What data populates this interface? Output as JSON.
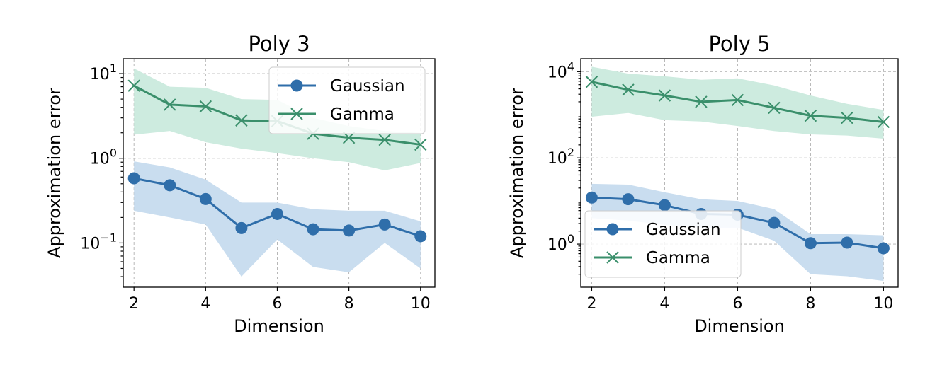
{
  "chart_data": [
    {
      "type": "line",
      "title": "Poly 3",
      "xlabel": "Dimension",
      "ylabel": "Approximation error",
      "yscale": "log",
      "xlim": [
        1.7,
        10.4
      ],
      "ylim": [
        0.03,
        15
      ],
      "xticks": [
        2,
        4,
        6,
        8,
        10
      ],
      "yticks": [
        {
          "value": 0.1,
          "base": "10",
          "exp": "−1"
        },
        {
          "value": 1,
          "base": "10",
          "exp": "0"
        },
        {
          "value": 10,
          "base": "10",
          "exp": "1"
        }
      ],
      "grid": true,
      "legend": "top-right",
      "x": [
        2,
        3,
        4,
        5,
        6,
        7,
        8,
        9,
        10
      ],
      "series": [
        {
          "name": "Gaussian",
          "color": "#2f6eaa",
          "band_color": "#c9ddef",
          "marker": "circle",
          "values": [
            0.58,
            0.48,
            0.33,
            0.15,
            0.22,
            0.145,
            0.14,
            0.165,
            0.12
          ],
          "lower": [
            0.24,
            0.2,
            0.165,
            0.04,
            0.11,
            0.052,
            0.045,
            0.1,
            0.05
          ],
          "upper": [
            0.92,
            0.78,
            0.56,
            0.3,
            0.3,
            0.25,
            0.24,
            0.24,
            0.18
          ]
        },
        {
          "name": "Gamma",
          "color": "#3a8f6b",
          "band_color": "#cdebdf",
          "marker": "x",
          "values": [
            7.2,
            4.3,
            4.1,
            2.8,
            2.75,
            1.95,
            1.75,
            1.65,
            1.45
          ],
          "lower": [
            1.9,
            2.1,
            1.55,
            1.3,
            1.15,
            1.0,
            0.9,
            0.72,
            0.88
          ],
          "upper": [
            11.5,
            7.0,
            6.8,
            5.0,
            4.9,
            3.0,
            2.4,
            2.1,
            2.0
          ]
        }
      ]
    },
    {
      "type": "line",
      "title": "Poly 5",
      "xlabel": "Dimension",
      "ylabel": "Approximation error",
      "yscale": "log",
      "xlim": [
        1.7,
        10.4
      ],
      "ylim": [
        0.1,
        20000
      ],
      "xticks": [
        2,
        4,
        6,
        8,
        10
      ],
      "yticks": [
        {
          "value": 1,
          "base": "10",
          "exp": "0"
        },
        {
          "value": 100,
          "base": "10",
          "exp": "2"
        },
        {
          "value": 10000,
          "base": "10",
          "exp": "4"
        }
      ],
      "grid": true,
      "legend": "bottom-left",
      "x": [
        2,
        3,
        4,
        5,
        6,
        7,
        8,
        9,
        10
      ],
      "series": [
        {
          "name": "Gaussian",
          "color": "#2f6eaa",
          "band_color": "#c9ddef",
          "marker": "circle",
          "values": [
            12,
            11,
            8,
            5,
            4.8,
            3.1,
            1.05,
            1.08,
            0.8
          ],
          "lower": [
            4,
            3.5,
            2.8,
            2.4,
            2.4,
            1.2,
            0.2,
            0.18,
            0.14
          ],
          "upper": [
            25,
            24,
            16,
            11,
            10,
            6.5,
            1.7,
            1.7,
            1.6
          ]
        },
        {
          "name": "Gamma",
          "color": "#3a8f6b",
          "band_color": "#cdebdf",
          "marker": "x",
          "values": [
            5800,
            3800,
            2800,
            2000,
            2200,
            1450,
            950,
            850,
            680
          ],
          "lower": [
            900,
            1100,
            750,
            700,
            550,
            420,
            350,
            330,
            280
          ],
          "upper": [
            13000,
            9000,
            7800,
            6500,
            7000,
            4800,
            2800,
            1800,
            1300
          ]
        }
      ]
    }
  ]
}
